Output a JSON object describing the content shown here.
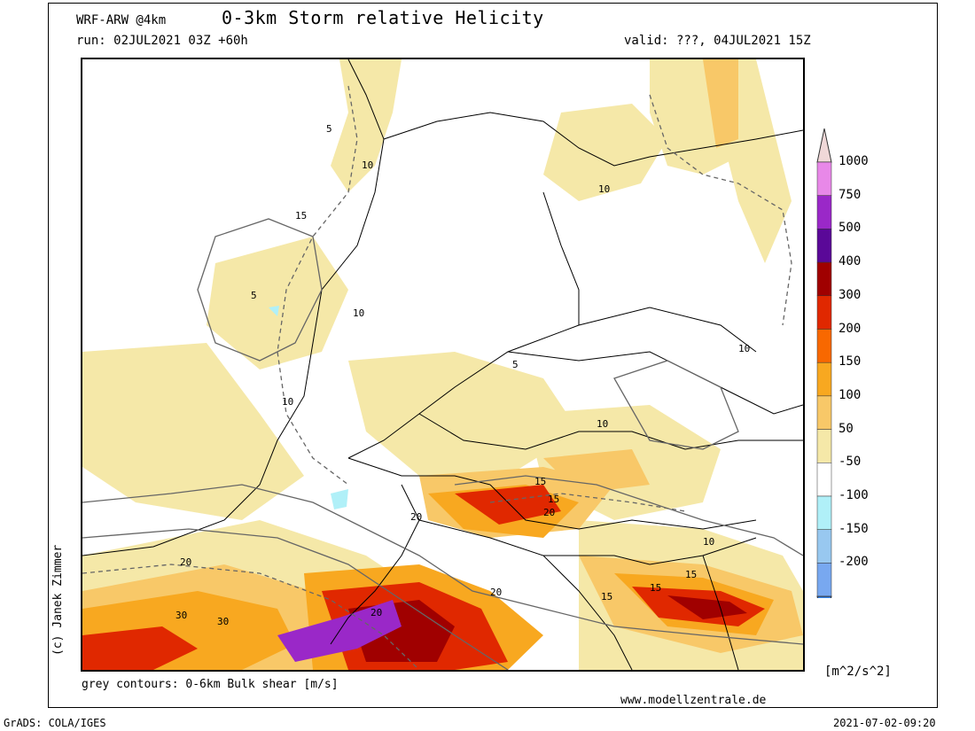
{
  "header": {
    "model": "WRF-ARW @4km",
    "title": "0-3km Storm relative Helicity",
    "run": "run: 02JUL2021 03Z +60h",
    "valid": "valid: ???, 04JUL2021 15Z"
  },
  "footer": {
    "legend_text": "grey contours: 0-6km Bulk shear [m/s]",
    "website": "www.modellzentrale.de",
    "grads": "GrADS: COLA/IGES",
    "timestamp": "2021-07-02-09:20",
    "credit": "(c) Janek Zimmer",
    "units": "[m^2/s^2]"
  },
  "colorbar": {
    "levels": [
      {
        "label": "1000",
        "color": "#f0d8d8"
      },
      {
        "label": "750",
        "color": "#e888e8"
      },
      {
        "label": "500",
        "color": "#9a28c8"
      },
      {
        "label": "400",
        "color": "#5a0898"
      },
      {
        "label": "300",
        "color": "#a00000"
      },
      {
        "label": "200",
        "color": "#e02800"
      },
      {
        "label": "150",
        "color": "#f86800"
      },
      {
        "label": "100",
        "color": "#f8a820"
      },
      {
        "label": "50",
        "color": "#f8c868"
      },
      {
        "label": "-50",
        "color": "#f5e8a8"
      },
      {
        "label": "-100",
        "color": "#ffffff"
      },
      {
        "label": "-150",
        "color": "#b0f0f8"
      },
      {
        "label": "-200",
        "color": "#98c8f0"
      }
    ],
    "bottom_colors": [
      "#78a8f0",
      "#3888f0"
    ]
  },
  "contour_labels": [
    "5",
    "10",
    "15",
    "20",
    "30"
  ]
}
